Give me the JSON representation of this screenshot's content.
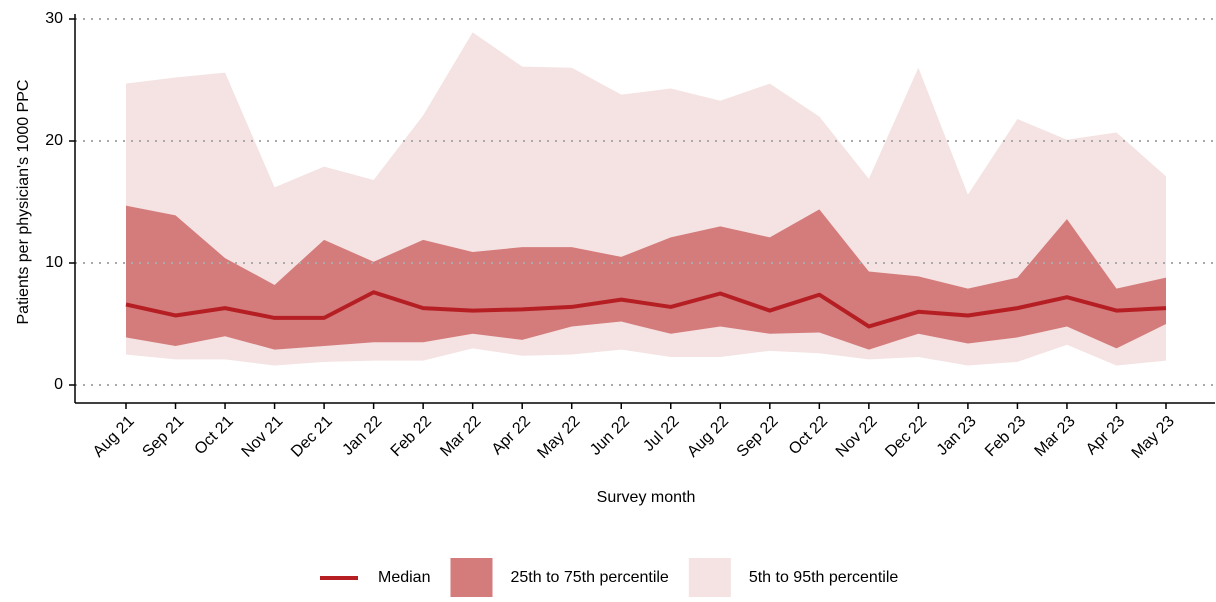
{
  "chart_data": {
    "type": "band-line",
    "xlabel": "Survey month",
    "ylabel": "Patients per physician's 1000 PPC",
    "categories": [
      "Aug 21",
      "Sep 21",
      "Oct 21",
      "Nov 21",
      "Dec 21",
      "Jan 22",
      "Feb 22",
      "Mar 22",
      "Apr 22",
      "May 22",
      "Jun 22",
      "Jul 22",
      "Aug 22",
      "Sep 22",
      "Oct 22",
      "Nov 22",
      "Dec 22",
      "Jan 23",
      "Feb 23",
      "Mar 23",
      "Apr 23",
      "May 23"
    ],
    "ylim": [
      0,
      30
    ],
    "yticks": [
      0,
      10,
      20,
      30
    ],
    "grid": true,
    "legend": "bottom",
    "series": [
      {
        "name": "Median",
        "color": "#b51f24",
        "values": [
          6.6,
          5.7,
          6.3,
          5.5,
          5.5,
          7.6,
          6.3,
          6.1,
          6.2,
          6.4,
          7.0,
          6.4,
          7.5,
          6.1,
          7.4,
          4.8,
          6.0,
          5.7,
          6.3,
          7.2,
          6.1,
          6.3
        ]
      },
      {
        "name": "25th to 75th percentile",
        "color": "#d47b7b",
        "lower": [
          3.9,
          3.2,
          4.0,
          2.9,
          3.2,
          3.5,
          3.5,
          4.2,
          3.7,
          4.8,
          5.2,
          4.2,
          4.8,
          4.2,
          4.3,
          2.9,
          4.2,
          3.4,
          3.9,
          4.8,
          3.0,
          5.0
        ],
        "upper": [
          14.7,
          13.9,
          10.4,
          8.2,
          11.9,
          10.1,
          11.9,
          10.9,
          11.3,
          11.3,
          10.5,
          12.1,
          13.0,
          12.1,
          14.4,
          9.3,
          8.9,
          7.9,
          8.8,
          13.6,
          7.9,
          8.8
        ]
      },
      {
        "name": "5th to 95th percentile",
        "color": "#f5e2e2",
        "lower": [
          2.5,
          2.1,
          2.1,
          1.6,
          1.9,
          2.0,
          2.0,
          3.0,
          2.4,
          2.5,
          2.9,
          2.3,
          2.3,
          2.8,
          2.6,
          2.1,
          2.3,
          1.6,
          1.9,
          3.3,
          1.6,
          2.0
        ],
        "upper": [
          24.7,
          25.2,
          25.6,
          16.2,
          17.9,
          16.8,
          22.1,
          28.9,
          26.1,
          26.0,
          23.8,
          24.3,
          23.3,
          24.7,
          22.0,
          16.9,
          26.0,
          15.6,
          21.8,
          20.1,
          20.7,
          17.1
        ]
      }
    ]
  }
}
